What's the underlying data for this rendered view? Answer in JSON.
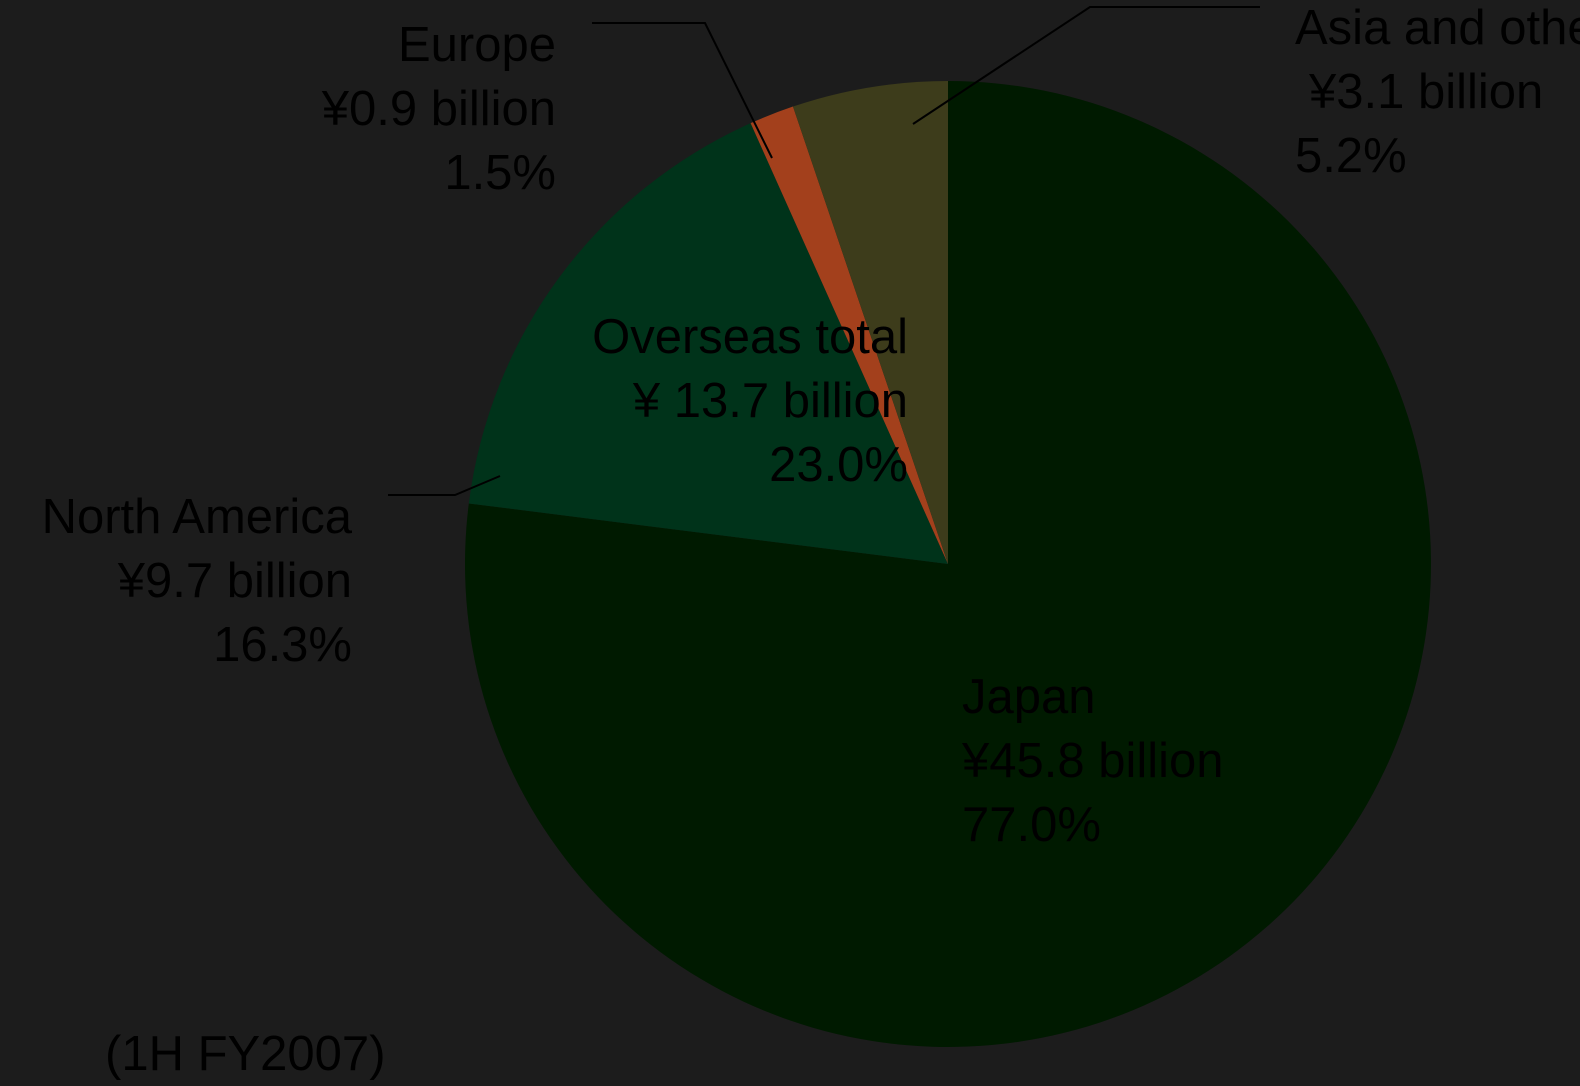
{
  "chart_data": {
    "type": "pie",
    "subtitle": "(1H FY2007)",
    "categories": [
      "Japan",
      "North America",
      "Europe",
      "Asia and others"
    ],
    "amount_labels": [
      "¥45.8 billion",
      "¥9.7 billion",
      "¥0.9 billion",
      "¥3.1 billion"
    ],
    "values": [
      77.0,
      16.3,
      1.5,
      5.2
    ],
    "value_labels": [
      "77.0%",
      "16.3%",
      "1.5%",
      "5.2%"
    ],
    "colors": [
      "#001a00",
      "#00331a",
      "#a3401c",
      "#3d3c1b"
    ],
    "annotation": {
      "title": "Overseas total",
      "amount_label": "¥ 13.7 billion",
      "value": 23.0,
      "value_label": "23.0%"
    }
  }
}
